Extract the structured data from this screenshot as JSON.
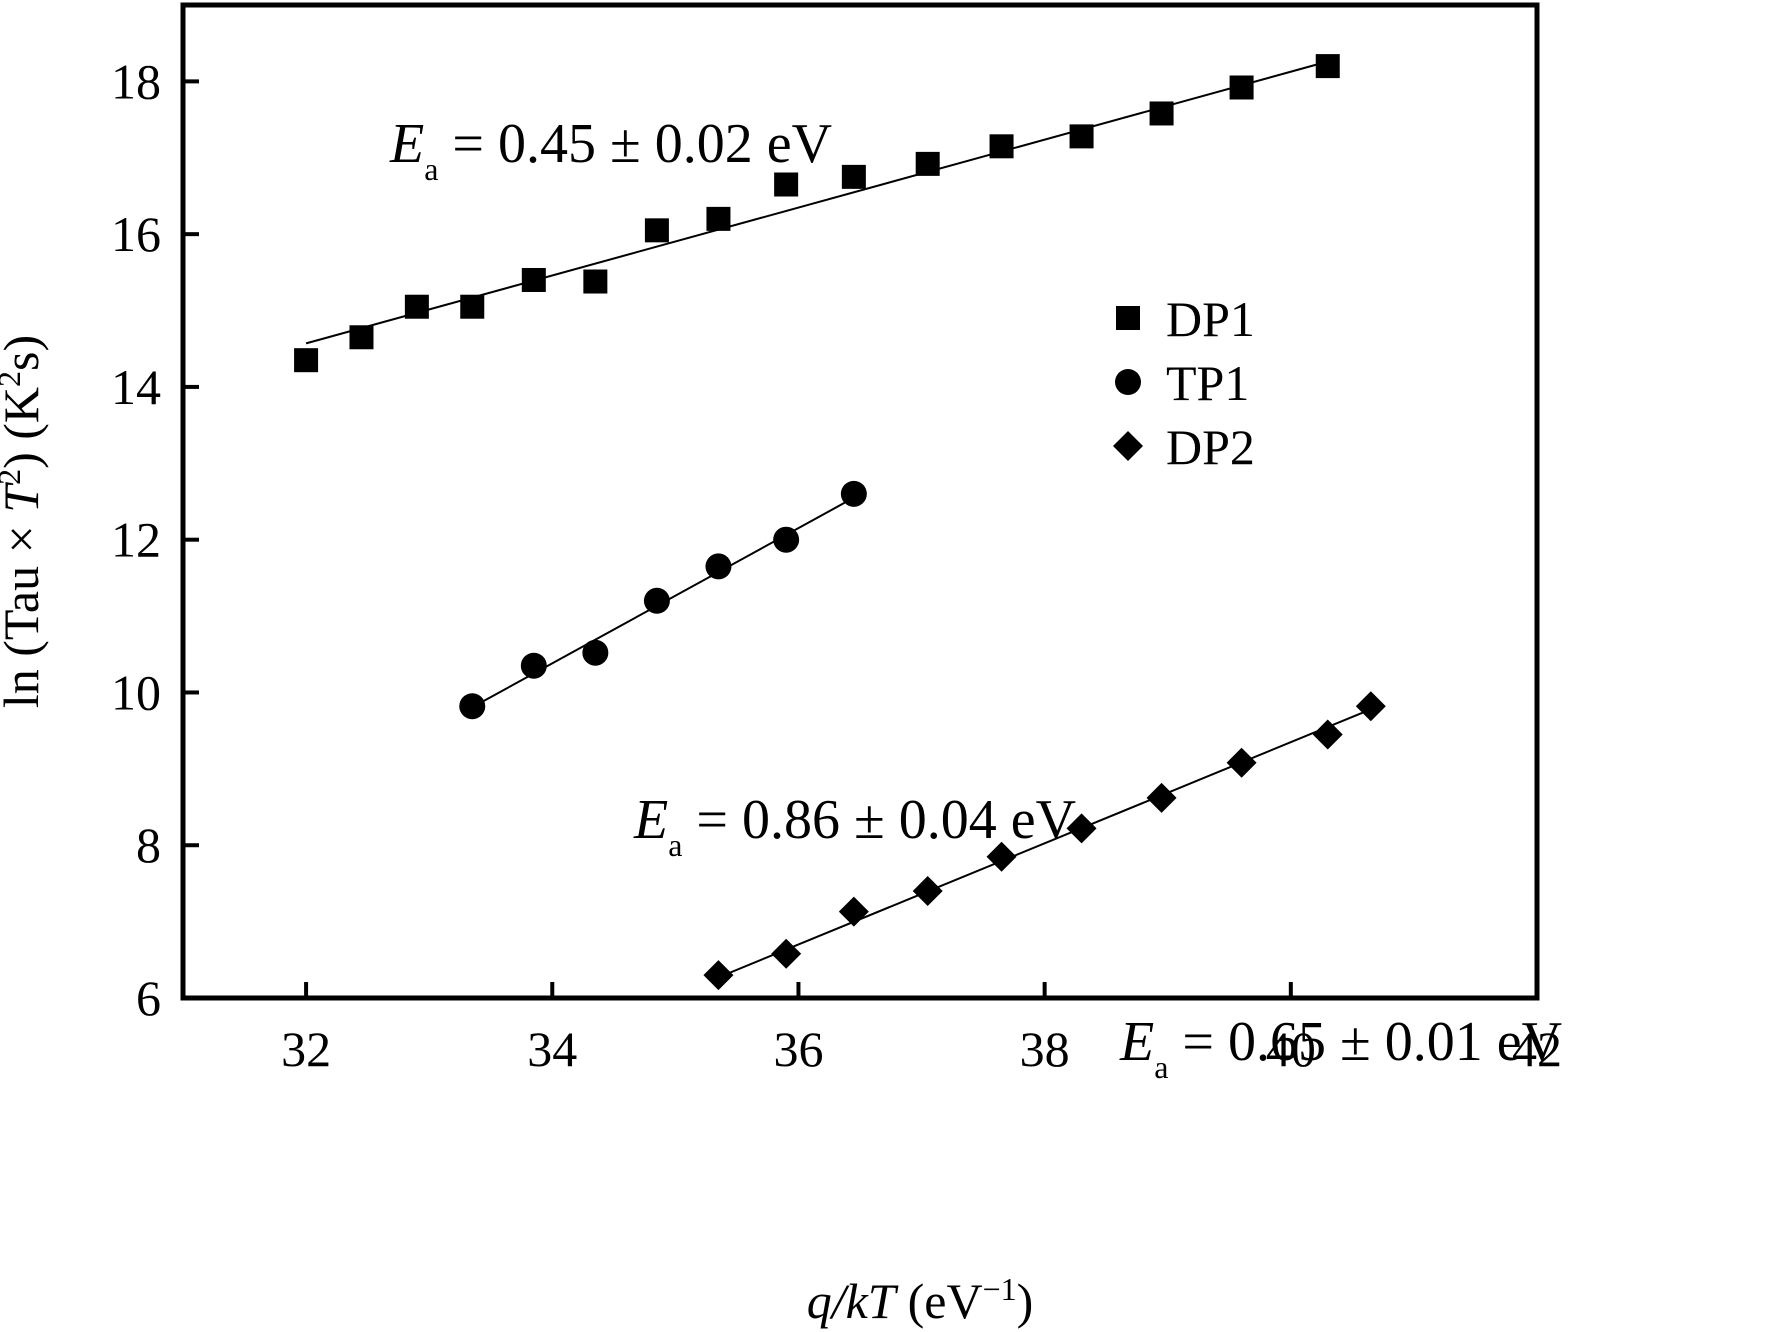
{
  "chart_data": {
    "type": "scatter",
    "xlabel": {
      "main": "q/kT",
      "unit_prefix": "(eV",
      "unit_sup": "−1",
      "unit_suffix": ")"
    },
    "ylabel": {
      "prefix": "ln (Tau × ",
      "T": "T",
      "T_sup": "2",
      "mid": ") (K",
      "K_sup": "2",
      "suffix": "s)"
    },
    "xlim": [
      31,
      42
    ],
    "ylim": [
      6,
      19
    ],
    "x_ticks": [
      32,
      34,
      36,
      38,
      40,
      42
    ],
    "y_ticks": [
      6,
      8,
      10,
      12,
      14,
      16,
      18
    ],
    "legend_position": "center-right",
    "series": [
      {
        "name": "DP1",
        "marker": "square",
        "x": [
          32.0,
          32.45,
          32.9,
          33.35,
          33.85,
          34.35,
          34.85,
          35.35,
          35.9,
          36.45,
          37.05,
          37.65,
          38.3,
          38.95,
          39.6,
          40.3
        ],
        "y": [
          14.35,
          14.65,
          15.05,
          15.05,
          15.4,
          15.38,
          16.05,
          16.2,
          16.65,
          16.75,
          16.92,
          17.15,
          17.28,
          17.58,
          17.92,
          18.2
        ],
        "fit": {
          "x": [
            32.0,
            40.3
          ],
          "y": [
            14.57,
            18.26
          ]
        },
        "annotation": {
          "E": "E",
          "sub": "a",
          "text": " = 0.45 ± 0.02 eV"
        }
      },
      {
        "name": "TP1",
        "marker": "circle",
        "x": [
          33.35,
          33.85,
          34.35,
          34.85,
          35.35,
          35.9,
          36.45
        ],
        "y": [
          9.82,
          10.35,
          10.52,
          11.2,
          11.65,
          12.0,
          12.6
        ],
        "fit": {
          "x": [
            33.4,
            36.45
          ],
          "y": [
            9.85,
            12.55
          ]
        },
        "annotation": {
          "E": "E",
          "sub": "a",
          "text": " = 0.86 ± 0.04 eV"
        }
      },
      {
        "name": "DP2",
        "marker": "diamond",
        "x": [
          35.35,
          35.9,
          36.45,
          37.05,
          37.65,
          38.3,
          38.95,
          39.6,
          40.3,
          40.65
        ],
        "y": [
          6.3,
          6.58,
          7.13,
          7.4,
          7.85,
          8.22,
          8.62,
          9.08,
          9.45,
          9.82
        ],
        "fit": {
          "x": [
            35.35,
            40.65
          ],
          "y": [
            6.27,
            9.78
          ]
        },
        "annotation": {
          "E": "E",
          "sub": "a",
          "text": " = 0.65 ± 0.01 eV"
        }
      }
    ]
  }
}
